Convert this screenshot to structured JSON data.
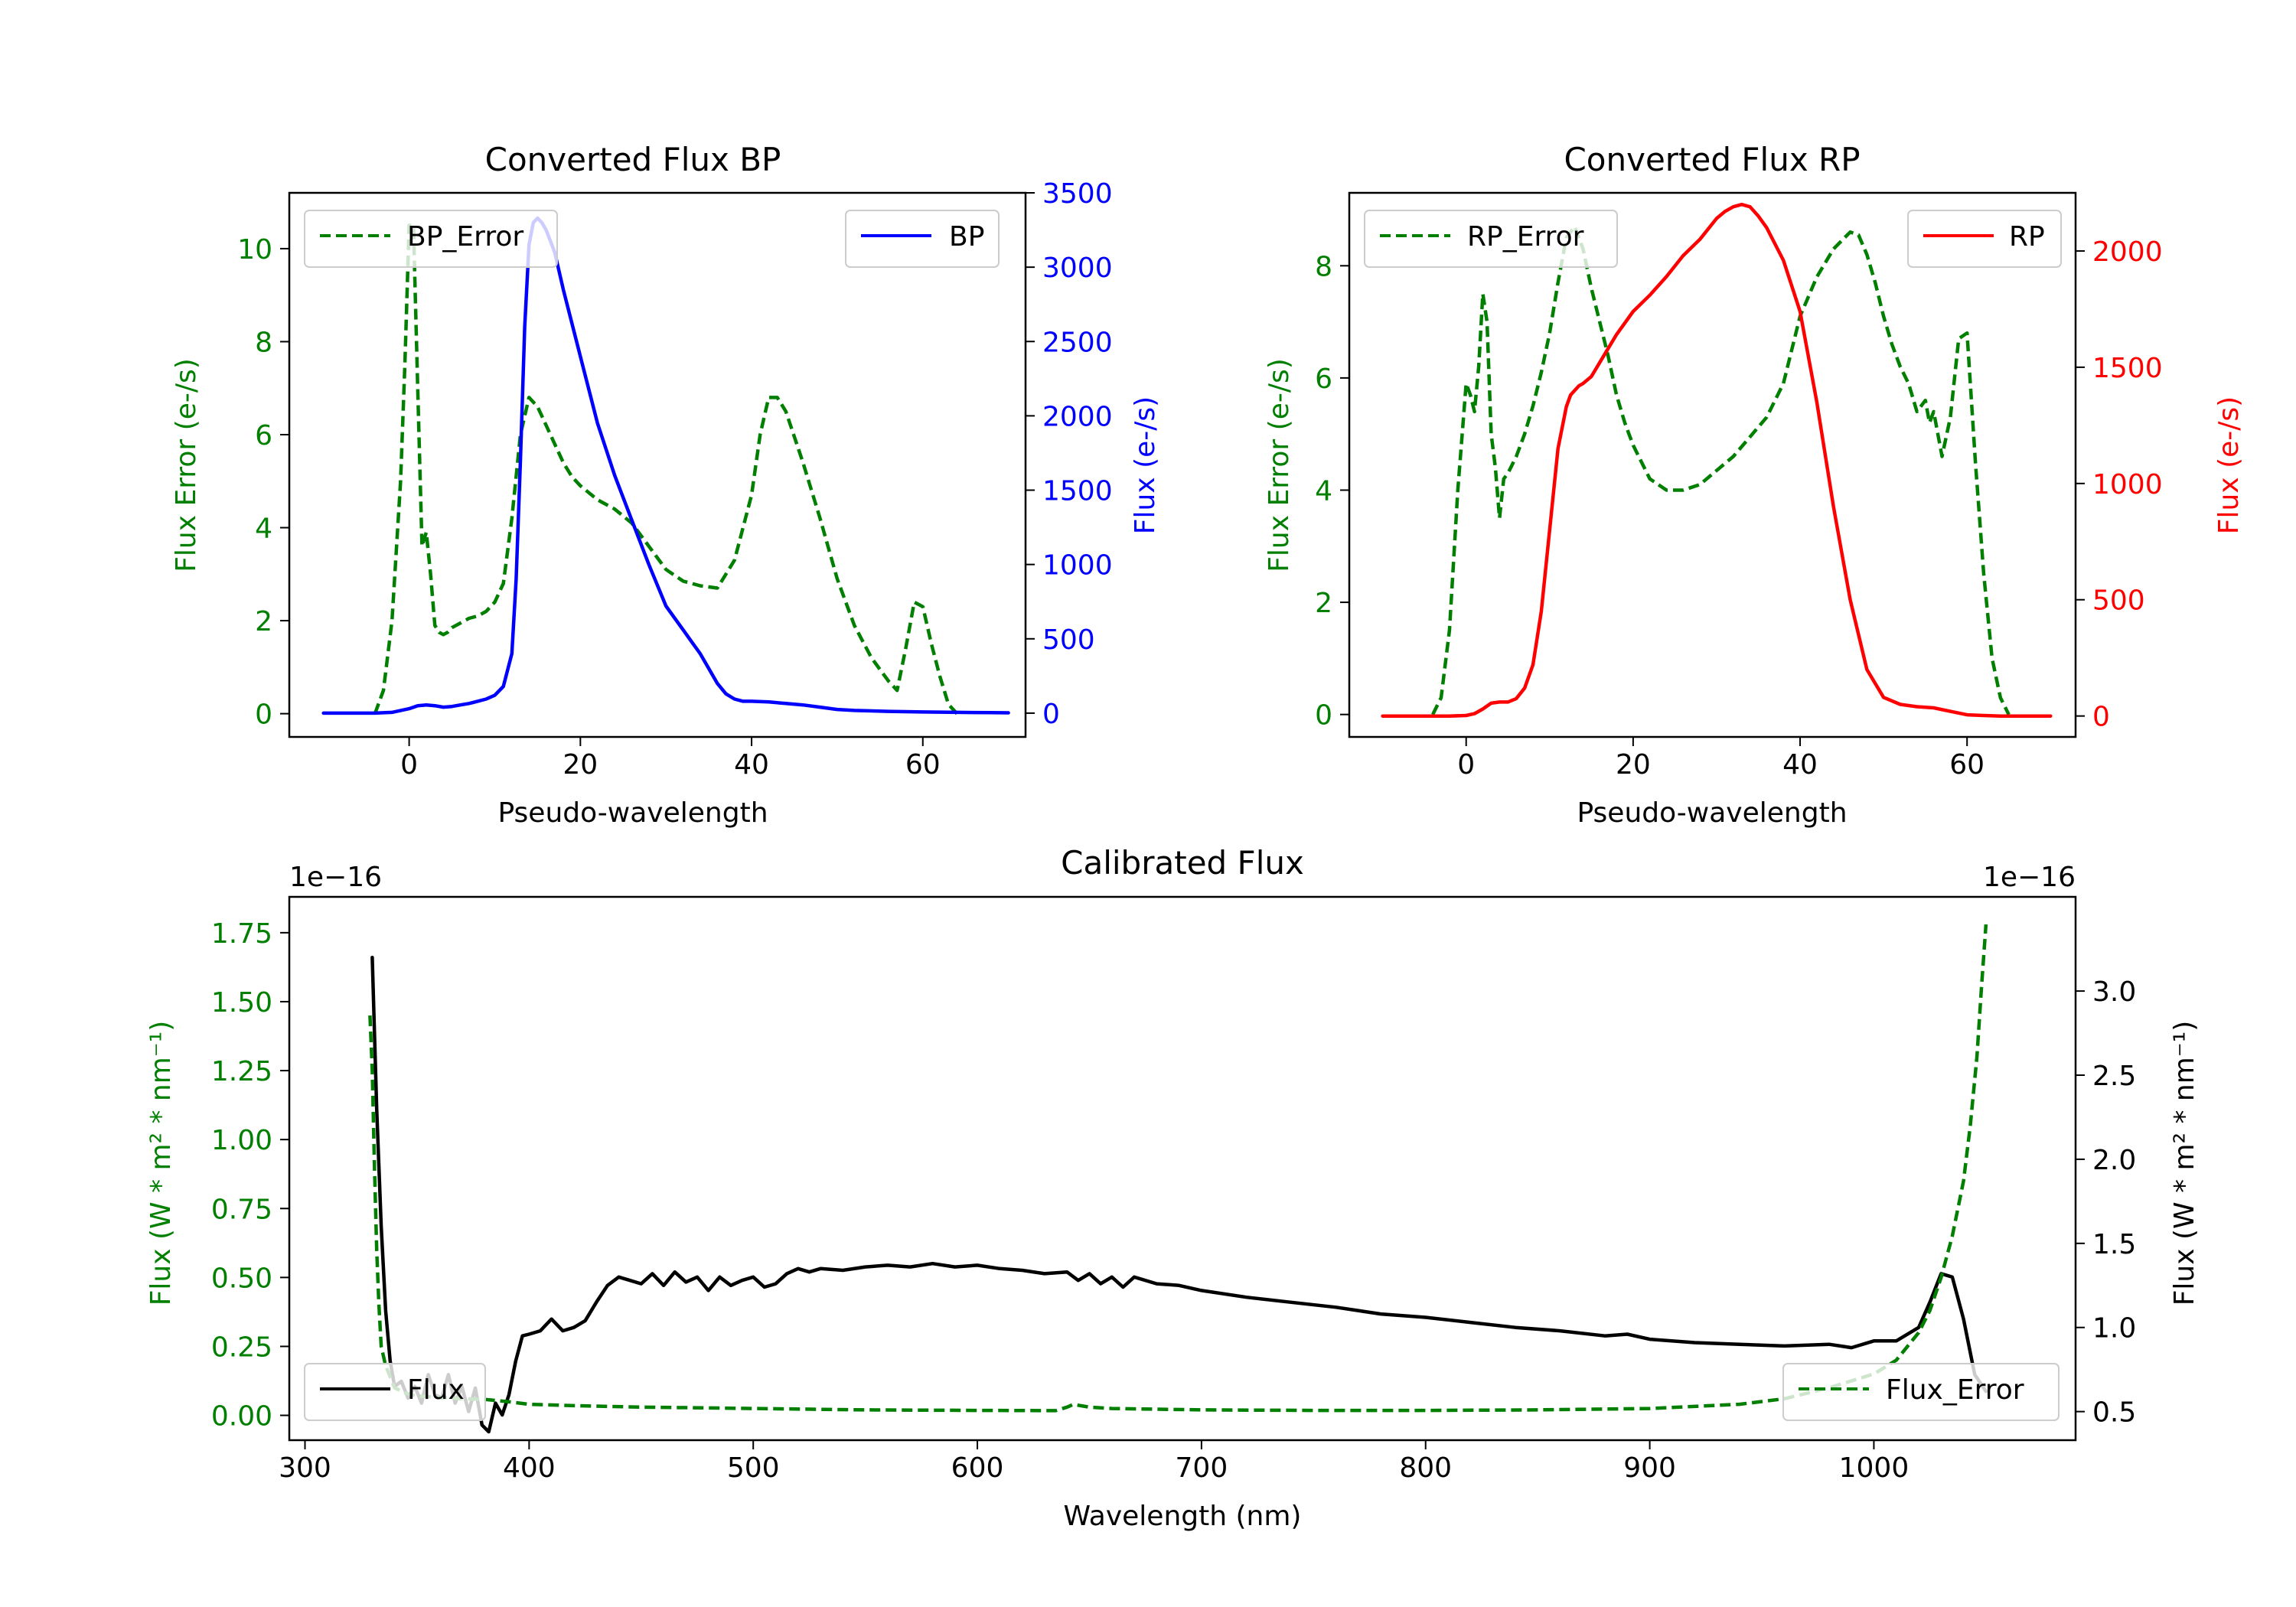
{
  "colors": {
    "green": "#007f00",
    "blue": "#0000ff",
    "red": "#ff0000",
    "black": "#000000"
  },
  "chart_data": [
    {
      "type": "line",
      "title": "Converted Flux BP",
      "xlabel": "Pseudo-wavelength",
      "ylabel_left": "Flux Error (e-/s)",
      "ylabel_right": "Flux (e-/s)",
      "xlim": [
        -14,
        72
      ],
      "ylim_left": [
        -0.5,
        11.2
      ],
      "ylim_right": [
        -160,
        3500
      ],
      "x_ticks": [
        0,
        20,
        40,
        60
      ],
      "x_tick_labels": [
        "0",
        "20",
        "40",
        "60"
      ],
      "y_ticks_left": [
        0,
        2,
        4,
        6,
        8,
        10
      ],
      "y_tick_labels_left": [
        "0",
        "2",
        "4",
        "6",
        "8",
        "10"
      ],
      "y_ticks_right": [
        0,
        500,
        1000,
        1500,
        2000,
        2500,
        3000,
        3500
      ],
      "y_tick_labels_right": [
        "0",
        "500",
        "1000",
        "1500",
        "2000",
        "2500",
        "3000",
        "3500"
      ],
      "legend_left": {
        "label": "BP_Error",
        "position": "upper-left"
      },
      "legend_right": {
        "label": "BP",
        "position": "upper-right"
      },
      "series": [
        {
          "name": "BP_Error",
          "axis": "left",
          "color": "#007f00",
          "style": "dashed",
          "x": [
            -4,
            -3,
            -2,
            -1,
            -0.5,
            0,
            0.5,
            1,
            1.5,
            2,
            2.5,
            3,
            3.5,
            4,
            4.5,
            5,
            6,
            7,
            8,
            9,
            10,
            11,
            12,
            13,
            14,
            15,
            16,
            17,
            18,
            19,
            20,
            22,
            24,
            26,
            28,
            30,
            32,
            34,
            36,
            38,
            40,
            41,
            42,
            43,
            44,
            46,
            48,
            50,
            52,
            54,
            56,
            57,
            58,
            59,
            60,
            61,
            62,
            63,
            64
          ],
          "y": [
            0,
            0.5,
            2,
            5,
            7.5,
            10.5,
            10.5,
            7,
            3.6,
            3.9,
            3,
            1.9,
            1.75,
            1.7,
            1.75,
            1.85,
            1.95,
            2.05,
            2.1,
            2.2,
            2.4,
            2.8,
            4.2,
            6.0,
            6.8,
            6.6,
            6.2,
            5.8,
            5.4,
            5.1,
            4.9,
            4.6,
            4.4,
            4.1,
            3.6,
            3.1,
            2.85,
            2.75,
            2.7,
            3.3,
            4.7,
            6.0,
            6.8,
            6.8,
            6.5,
            5.4,
            4.2,
            2.9,
            1.9,
            1.2,
            0.7,
            0.5,
            1.4,
            2.4,
            2.3,
            1.5,
            0.8,
            0.2,
            0
          ]
        },
        {
          "name": "BP",
          "axis": "right",
          "color": "#0000ff",
          "style": "solid",
          "x": [
            -10,
            -8,
            -6,
            -4,
            -2,
            0,
            1,
            2,
            3,
            4,
            5,
            6,
            7,
            8,
            9,
            10,
            11,
            12,
            12.5,
            13,
            13.5,
            14,
            14.5,
            15,
            15.5,
            16,
            17,
            18,
            20,
            22,
            24,
            26,
            28,
            30,
            32,
            33,
            34,
            35,
            36,
            37,
            38,
            39,
            40,
            42,
            44,
            46,
            48,
            50,
            52,
            56,
            60,
            64,
            68,
            70
          ],
          "y": [
            0,
            0,
            0,
            0,
            5,
            30,
            50,
            55,
            50,
            40,
            45,
            55,
            65,
            80,
            95,
            120,
            180,
            400,
            900,
            1700,
            2600,
            3150,
            3300,
            3330,
            3300,
            3250,
            3100,
            2850,
            2400,
            1950,
            1600,
            1300,
            1000,
            720,
            560,
            480,
            400,
            300,
            200,
            130,
            95,
            80,
            80,
            75,
            65,
            55,
            40,
            25,
            18,
            12,
            8,
            5,
            3,
            2
          ]
        }
      ]
    },
    {
      "type": "line",
      "title": "Converted Flux RP",
      "xlabel": "Pseudo-wavelength",
      "ylabel_left": "Flux Error (e-/s)",
      "ylabel_right": "Flux (e-/s)",
      "xlim": [
        -14,
        73
      ],
      "ylim_left": [
        -0.4,
        9.3
      ],
      "ylim_right": [
        -90,
        2250
      ],
      "x_ticks": [
        0,
        20,
        40,
        60
      ],
      "x_tick_labels": [
        "0",
        "20",
        "40",
        "60"
      ],
      "y_ticks_left": [
        0,
        2,
        4,
        6,
        8
      ],
      "y_tick_labels_left": [
        "0",
        "2",
        "4",
        "6",
        "8"
      ],
      "y_ticks_right": [
        0,
        500,
        1000,
        1500,
        2000
      ],
      "y_tick_labels_right": [
        "0",
        "500",
        "1000",
        "1500",
        "2000"
      ],
      "legend_left": {
        "label": "RP_Error",
        "position": "upper-left"
      },
      "legend_right": {
        "label": "RP",
        "position": "upper-right"
      },
      "series": [
        {
          "name": "RP_Error",
          "axis": "left",
          "color": "#007f00",
          "style": "dashed",
          "x": [
            -4,
            -3,
            -2,
            -1,
            0,
            0.5,
            1,
            1.5,
            2,
            2.5,
            3,
            3.5,
            4,
            4.5,
            5,
            6,
            7,
            8,
            9,
            10,
            11,
            12,
            13,
            14,
            15,
            16,
            17,
            18,
            19,
            20,
            22,
            24,
            26,
            28,
            30,
            32,
            34,
            36,
            38,
            40,
            42,
            44,
            46,
            47,
            48,
            49,
            50,
            51,
            52,
            53,
            54,
            55,
            55.5,
            56,
            57,
            58,
            59,
            60,
            61,
            62,
            63,
            64,
            65
          ],
          "y": [
            0,
            0.3,
            1.5,
            4,
            5.9,
            5.7,
            5.4,
            6.2,
            7.5,
            7.0,
            5.0,
            4.4,
            3.5,
            4.2,
            4.3,
            4.6,
            5.0,
            5.5,
            6.1,
            6.8,
            7.7,
            8.5,
            8.7,
            8.3,
            7.6,
            7.0,
            6.4,
            5.7,
            5.2,
            4.8,
            4.2,
            4.0,
            4.0,
            4.1,
            4.35,
            4.6,
            4.95,
            5.3,
            5.9,
            7.1,
            7.8,
            8.3,
            8.6,
            8.55,
            8.2,
            7.7,
            7.1,
            6.6,
            6.2,
            5.9,
            5.4,
            5.6,
            5.2,
            5.4,
            4.6,
            5.3,
            6.7,
            6.8,
            4.5,
            2.5,
            1.0,
            0.3,
            0
          ]
        },
        {
          "name": "RP",
          "axis": "right",
          "color": "#ff0000",
          "style": "solid",
          "x": [
            -10,
            -5,
            -2,
            0,
            1,
            2,
            3,
            4,
            5,
            6,
            7,
            8,
            9,
            10,
            11,
            12,
            12.5,
            13,
            13.5,
            14,
            15,
            16,
            18,
            20,
            22,
            24,
            26,
            28,
            30,
            31,
            32,
            33,
            34,
            35,
            36,
            38,
            40,
            42,
            44,
            46,
            48,
            50,
            52,
            54,
            56,
            58,
            60,
            62,
            64,
            66,
            68,
            70
          ],
          "y": [
            0,
            0,
            0,
            2,
            10,
            30,
            55,
            60,
            60,
            75,
            120,
            220,
            450,
            800,
            1150,
            1330,
            1380,
            1400,
            1420,
            1430,
            1460,
            1520,
            1640,
            1740,
            1810,
            1890,
            1980,
            2050,
            2140,
            2170,
            2190,
            2200,
            2190,
            2150,
            2100,
            1960,
            1740,
            1350,
            900,
            500,
            200,
            80,
            50,
            40,
            35,
            20,
            5,
            2,
            0,
            0,
            0,
            0
          ]
        }
      ]
    },
    {
      "type": "line",
      "title": "Calibrated Flux",
      "xlabel": "Wavelength (nm)",
      "ylabel_left": "Flux (W * m² * nm⁻¹)",
      "ylabel_right": "Flux (W * m² * nm⁻¹)",
      "offset_left": "1e−16",
      "offset_right": "1e−16",
      "xlim": [
        293,
        1090
      ],
      "ylim_left": [
        -0.09,
        1.88
      ],
      "ylim_right": [
        0.33,
        3.56
      ],
      "x_ticks": [
        300,
        400,
        500,
        600,
        700,
        800,
        900,
        1000
      ],
      "x_tick_labels": [
        "300",
        "400",
        "500",
        "600",
        "700",
        "800",
        "900",
        "1000"
      ],
      "y_ticks_left": [
        0,
        0.25,
        0.5,
        0.75,
        1.0,
        1.25,
        1.5,
        1.75
      ],
      "y_tick_labels_left": [
        "0.00",
        "0.25",
        "0.50",
        "0.75",
        "1.00",
        "1.25",
        "1.50",
        "1.75"
      ],
      "y_ticks_right": [
        0.5,
        1.0,
        1.5,
        2.0,
        2.5,
        3.0
      ],
      "y_tick_labels_right": [
        "0.5",
        "1.0",
        "1.5",
        "2.0",
        "2.5",
        "3.0"
      ],
      "legend_left": {
        "label": "Flux",
        "position": "lower-left"
      },
      "legend_right": {
        "label": "Flux_Error",
        "position": "lower-right"
      },
      "series": [
        {
          "name": "Flux",
          "axis": "right",
          "color": "#000000",
          "style": "solid",
          "x": [
            330,
            332,
            334,
            336,
            338,
            340,
            343,
            346,
            349,
            352,
            355,
            358,
            361,
            364,
            367,
            370,
            373,
            376,
            379,
            382,
            385,
            388,
            391,
            394,
            397,
            400,
            405,
            410,
            415,
            420,
            425,
            430,
            435,
            440,
            445,
            450,
            455,
            460,
            465,
            470,
            475,
            480,
            485,
            490,
            495,
            500,
            505,
            510,
            515,
            520,
            525,
            530,
            540,
            550,
            560,
            570,
            580,
            590,
            600,
            610,
            620,
            630,
            640,
            645,
            650,
            655,
            660,
            665,
            670,
            680,
            690,
            700,
            720,
            740,
            760,
            780,
            800,
            820,
            840,
            860,
            880,
            890,
            900,
            920,
            940,
            960,
            980,
            990,
            1000,
            1010,
            1020,
            1025,
            1030,
            1035,
            1040,
            1045,
            1050
          ],
          "y": [
            3.2,
            2.3,
            1.6,
            1.1,
            0.8,
            0.65,
            0.68,
            0.58,
            0.65,
            0.55,
            0.72,
            0.6,
            0.58,
            0.72,
            0.55,
            0.65,
            0.5,
            0.64,
            0.42,
            0.38,
            0.55,
            0.48,
            0.6,
            0.8,
            0.95,
            0.96,
            0.98,
            1.05,
            0.98,
            1.0,
            1.04,
            1.15,
            1.25,
            1.3,
            1.28,
            1.26,
            1.32,
            1.25,
            1.33,
            1.27,
            1.3,
            1.22,
            1.3,
            1.25,
            1.28,
            1.3,
            1.24,
            1.26,
            1.32,
            1.35,
            1.33,
            1.35,
            1.34,
            1.36,
            1.37,
            1.36,
            1.38,
            1.36,
            1.37,
            1.35,
            1.34,
            1.32,
            1.33,
            1.28,
            1.32,
            1.26,
            1.3,
            1.24,
            1.3,
            1.26,
            1.25,
            1.22,
            1.18,
            1.15,
            1.12,
            1.08,
            1.06,
            1.03,
            1.0,
            0.98,
            0.95,
            0.96,
            0.93,
            0.91,
            0.9,
            0.89,
            0.9,
            0.88,
            0.92,
            0.92,
            1.0,
            1.15,
            1.32,
            1.3,
            1.05,
            0.72,
            0.62
          ]
        },
        {
          "name": "Flux_Error",
          "axis": "left",
          "color": "#007f00",
          "style": "dashed",
          "x": [
            329,
            330,
            331,
            332,
            333,
            334,
            336,
            338,
            340,
            345,
            350,
            360,
            370,
            380,
            390,
            400,
            420,
            450,
            500,
            550,
            600,
            635,
            640,
            643,
            646,
            650,
            660,
            700,
            750,
            800,
            850,
            900,
            940,
            960,
            980,
            1000,
            1010,
            1020,
            1025,
            1030,
            1035,
            1040,
            1043,
            1046,
            1048,
            1050
          ],
          "y": [
            1.45,
            1.25,
            0.9,
            0.6,
            0.4,
            0.25,
            0.18,
            0.14,
            0.1,
            0.08,
            0.07,
            0.065,
            0.06,
            0.058,
            0.05,
            0.04,
            0.035,
            0.03,
            0.025,
            0.02,
            0.018,
            0.017,
            0.03,
            0.04,
            0.035,
            0.03,
            0.025,
            0.02,
            0.018,
            0.018,
            0.02,
            0.025,
            0.04,
            0.06,
            0.1,
            0.15,
            0.2,
            0.3,
            0.38,
            0.5,
            0.65,
            0.85,
            1.05,
            1.3,
            1.55,
            1.78
          ]
        }
      ]
    }
  ]
}
